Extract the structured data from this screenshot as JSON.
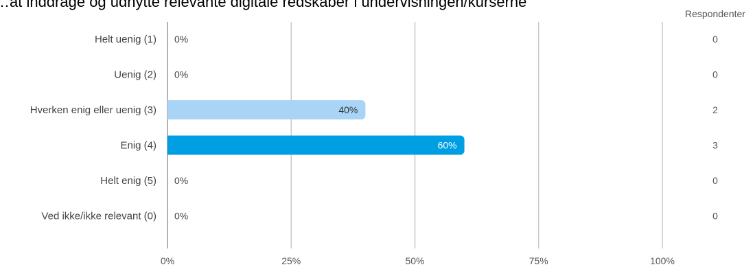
{
  "chart_data": {
    "type": "bar",
    "orientation": "horizontal",
    "title": "…at inddrage og udnytte relevante digitale redskaber i undervisningen/kurserne",
    "categories": [
      "Helt uenig (1)",
      "Uenig (2)",
      "Hverken enig eller uenig (3)",
      "Enig (4)",
      "Helt enig (5)",
      "Ved ikke/ikke relevant (0)"
    ],
    "values": [
      0,
      0,
      40,
      60,
      0,
      0
    ],
    "value_labels": [
      "0%",
      "0%",
      "40%",
      "60%",
      "0%",
      "0%"
    ],
    "bar_colors": [
      "#a9d4f5",
      "#a9d4f5",
      "#a9d4f5",
      "#009fe3",
      "#a9d4f5",
      "#a9d4f5"
    ],
    "value_label_colors": [
      "#444444",
      "#444444",
      "#333333",
      "#ffffff",
      "#444444",
      "#444444"
    ],
    "xlim": [
      0,
      100
    ],
    "xticks": [
      0,
      25,
      50,
      75,
      100
    ],
    "xtick_labels": [
      "0%",
      "25%",
      "50%",
      "75%",
      "100%"
    ],
    "grid": true,
    "respondents_header": "Respondenter",
    "respondents": [
      "0",
      "0",
      "2",
      "3",
      "0",
      "0"
    ]
  }
}
